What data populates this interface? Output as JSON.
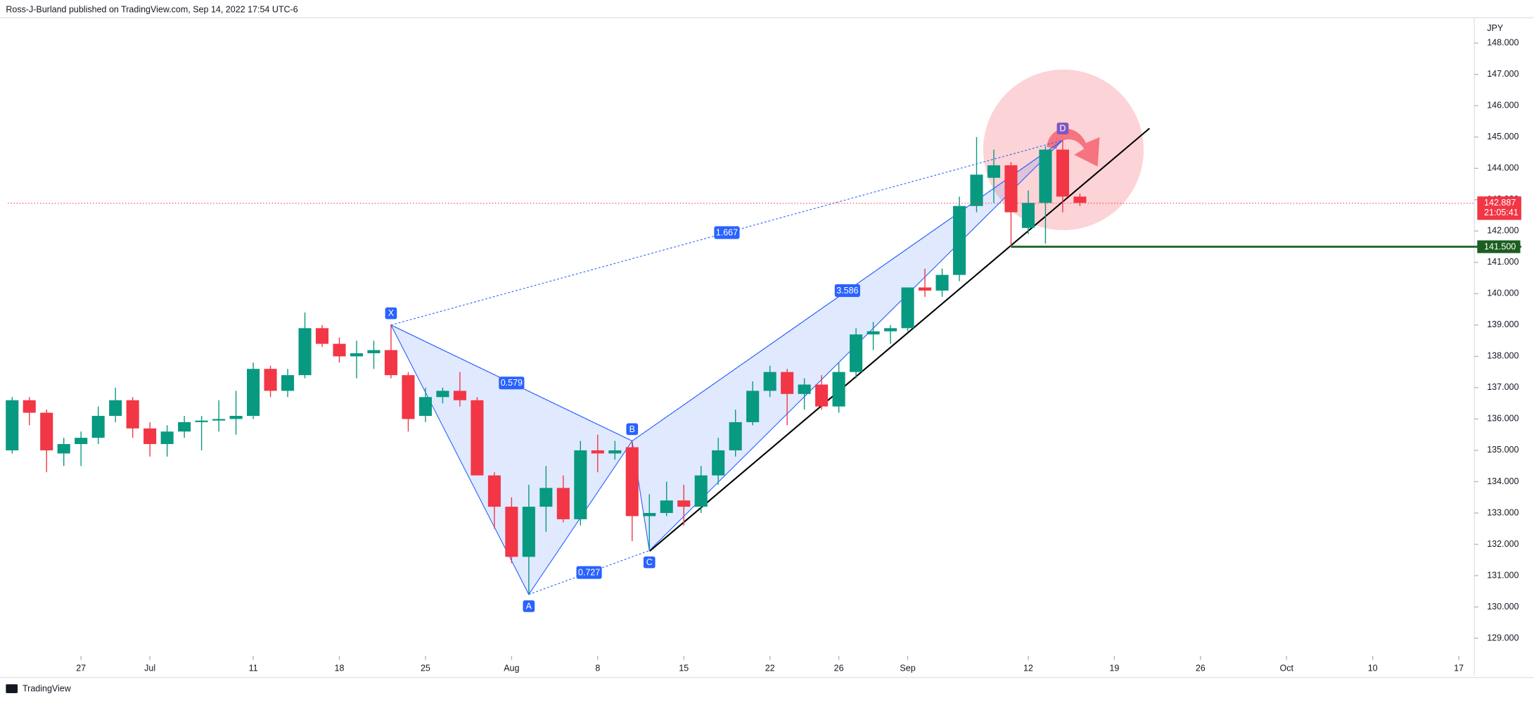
{
  "header": {
    "byline": "Ross-J-Burland published on TradingView.com, Sep 14, 2022 17:54 UTC-6"
  },
  "footer": {
    "brand": "TradingView"
  },
  "chart_data": {
    "type": "candlestick",
    "currency": "JPY",
    "open": [
      135.0,
      136.6,
      136.2,
      134.9,
      135.2,
      135.4,
      136.1,
      136.6,
      135.7,
      135.2,
      135.6,
      135.9,
      135.95,
      136.0,
      136.1,
      137.6,
      136.9,
      137.4,
      138.9,
      138.4,
      138.0,
      138.1,
      138.2,
      137.4,
      136.1,
      136.7,
      136.9,
      136.6,
      134.2,
      133.2,
      131.6,
      133.2,
      133.8,
      132.8,
      135.0,
      134.9,
      135.1,
      132.9,
      133.0,
      133.4,
      133.2,
      134.2,
      135.0,
      135.9,
      136.9,
      137.5,
      136.8,
      137.1,
      136.4,
      137.5,
      138.7,
      138.8,
      138.9,
      140.2,
      140.1,
      140.6,
      142.8,
      143.7,
      144.1,
      142.1,
      142.9,
      144.6,
      143.1
    ],
    "high": [
      136.7,
      136.7,
      136.3,
      135.4,
      135.6,
      136.4,
      137.0,
      136.7,
      135.9,
      135.8,
      136.1,
      136.1,
      136.6,
      136.9,
      137.8,
      137.7,
      137.6,
      139.4,
      139.0,
      138.6,
      138.5,
      138.5,
      139.0,
      137.5,
      137.0,
      137.0,
      137.5,
      136.7,
      134.3,
      133.5,
      133.9,
      134.5,
      134.2,
      135.3,
      135.5,
      135.3,
      135.3,
      133.6,
      134.0,
      133.9,
      134.5,
      135.4,
      136.3,
      137.2,
      137.7,
      137.6,
      137.3,
      137.4,
      137.8,
      138.9,
      139.1,
      139.0,
      140.2,
      140.8,
      140.8,
      143.1,
      145.0,
      144.6,
      144.2,
      143.3,
      144.7,
      144.9,
      143.2
    ],
    "low": [
      134.9,
      135.8,
      134.3,
      134.5,
      134.5,
      135.2,
      135.9,
      135.4,
      134.8,
      134.8,
      135.4,
      135.0,
      135.6,
      135.5,
      136.0,
      136.7,
      136.7,
      137.3,
      138.3,
      137.8,
      137.3,
      137.6,
      137.3,
      135.6,
      135.9,
      136.5,
      136.4,
      134.2,
      132.5,
      131.4,
      130.4,
      132.4,
      132.7,
      132.6,
      134.3,
      134.7,
      132.1,
      131.8,
      132.9,
      132.6,
      133.0,
      133.9,
      134.8,
      135.8,
      136.7,
      135.8,
      136.3,
      136.3,
      136.2,
      137.3,
      138.2,
      138.4,
      138.8,
      139.9,
      139.9,
      140.4,
      142.6,
      142.9,
      141.5,
      141.9,
      141.6,
      142.6,
      142.8
    ],
    "close": [
      136.6,
      136.2,
      135.0,
      135.2,
      135.4,
      136.1,
      136.6,
      135.7,
      135.2,
      135.6,
      135.9,
      135.95,
      136.0,
      136.1,
      137.6,
      136.9,
      137.4,
      138.9,
      138.4,
      138.0,
      138.1,
      138.2,
      137.4,
      136.0,
      136.7,
      136.9,
      136.6,
      134.2,
      133.2,
      131.6,
      133.2,
      133.8,
      132.8,
      135.0,
      134.9,
      135.0,
      132.9,
      133.0,
      133.4,
      133.2,
      134.2,
      135.0,
      135.9,
      136.9,
      137.5,
      136.8,
      137.1,
      136.4,
      137.5,
      138.7,
      138.8,
      138.9,
      140.2,
      140.1,
      140.6,
      142.8,
      143.8,
      144.1,
      142.6,
      142.9,
      144.6,
      143.1,
      142.9
    ],
    "up_color": "#089981",
    "down_color": "#f23645",
    "xlim": [
      -0.25,
      84.9
    ],
    "xticks": [
      {
        "value": 4,
        "label": "27"
      },
      {
        "value": 8,
        "label": "Jul"
      },
      {
        "value": 14,
        "label": "11"
      },
      {
        "value": 19,
        "label": "18"
      },
      {
        "value": 24,
        "label": "25"
      },
      {
        "value": 29,
        "label": "Aug"
      },
      {
        "value": 34,
        "label": "8"
      },
      {
        "value": 39,
        "label": "15"
      },
      {
        "value": 44,
        "label": "22"
      },
      {
        "value": 48,
        "label": "26"
      },
      {
        "value": 52,
        "label": "Sep"
      },
      {
        "value": 59,
        "label": "12"
      },
      {
        "value": 64,
        "label": "19"
      },
      {
        "value": 69,
        "label": "26"
      },
      {
        "value": 74,
        "label": "Oct"
      },
      {
        "value": 79,
        "label": "10"
      },
      {
        "value": 84,
        "label": "17"
      }
    ],
    "ylim": [
      128.5,
      148.81
    ],
    "yticks": [
      {
        "value": 129,
        "label": "129.000"
      },
      {
        "value": 130,
        "label": "130.000"
      },
      {
        "value": 131,
        "label": "131.000"
      },
      {
        "value": 132,
        "label": "132.000"
      },
      {
        "value": 133,
        "label": "133.000"
      },
      {
        "value": 134,
        "label": "134.000"
      },
      {
        "value": 135,
        "label": "135.000"
      },
      {
        "value": 136,
        "label": "136.000"
      },
      {
        "value": 137,
        "label": "137.000"
      },
      {
        "value": 138,
        "label": "138.000"
      },
      {
        "value": 139,
        "label": "139.000"
      },
      {
        "value": 140,
        "label": "140.000"
      },
      {
        "value": 141,
        "label": "141.000"
      },
      {
        "value": 142,
        "label": "142.000"
      },
      {
        "value": 143,
        "label": "143.000"
      },
      {
        "value": 144,
        "label": "144.000"
      },
      {
        "value": 145,
        "label": "145.000"
      },
      {
        "value": 146,
        "label": "146.000"
      },
      {
        "value": 147,
        "label": "147.000"
      },
      {
        "value": 148,
        "label": "148.000"
      }
    ],
    "grid": false,
    "last_price": {
      "value": 142.887,
      "label": "142.887",
      "countdown": "21:05:41",
      "color": "#f23645"
    },
    "level": {
      "value": 141.5,
      "label": "141.500",
      "color": "#1b5e20"
    },
    "pattern": {
      "color": "#2962ff",
      "points": [
        {
          "label": "X",
          "index": 22,
          "price": 139.0
        },
        {
          "label": "A",
          "index": 30,
          "price": 130.4
        },
        {
          "label": "B",
          "index": 36,
          "price": 135.3
        },
        {
          "label": "C",
          "index": 37,
          "price": 131.8
        },
        {
          "label": "D",
          "index": 61,
          "price": 144.9
        }
      ],
      "ratios": [
        "0.579",
        "0.727",
        "1.667",
        "3.586"
      ]
    }
  }
}
